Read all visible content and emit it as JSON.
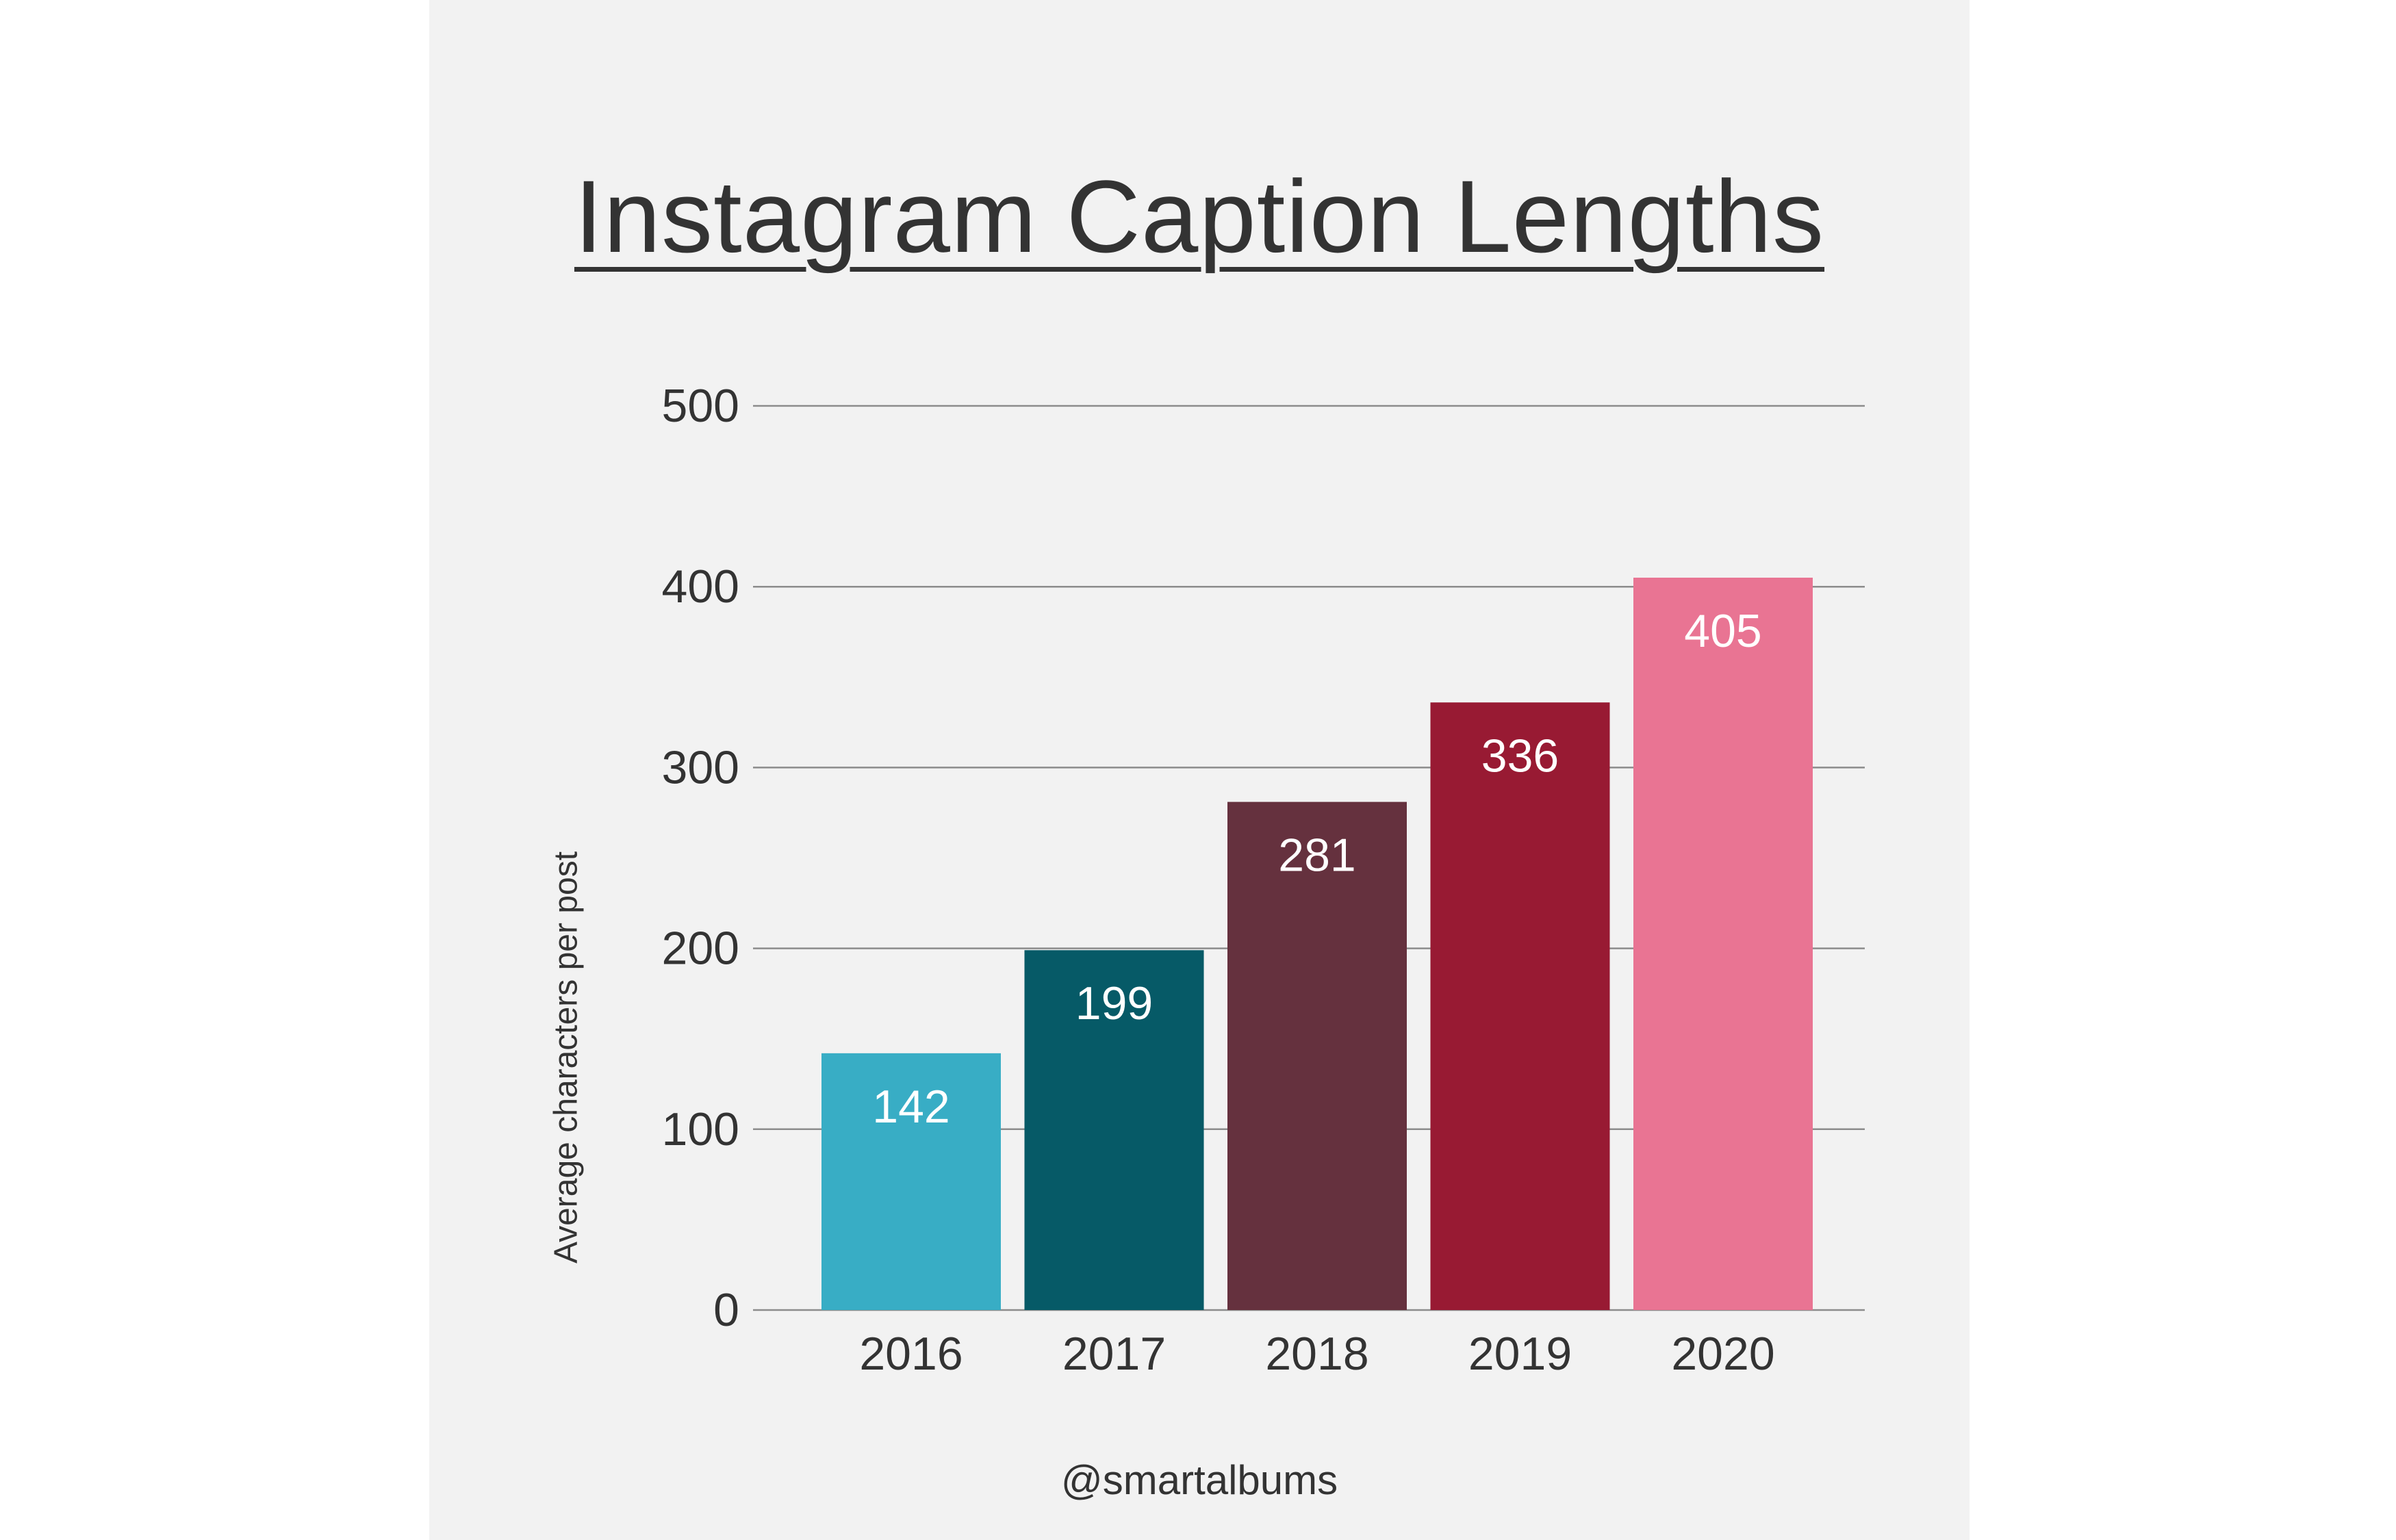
{
  "chart_data": {
    "type": "bar",
    "title": "Instagram Caption Lengths",
    "xlabel": "",
    "ylabel": "Average characters per post",
    "categories": [
      "2016",
      "2017",
      "2018",
      "2019",
      "2020"
    ],
    "values": [
      142,
      199,
      281,
      336,
      405
    ],
    "value_labels": [
      "142",
      "199",
      "281",
      "336",
      "405"
    ],
    "colors": [
      "#38adc5",
      "#065a67",
      "#65313e",
      "#981a33",
      "#e97493"
    ],
    "ylim": [
      0,
      500
    ],
    "yticks": [
      0,
      100,
      200,
      300,
      400,
      500
    ],
    "ytick_labels": [
      "0",
      "100",
      "200",
      "300",
      "400",
      "500"
    ],
    "grid": true,
    "legend": "none"
  },
  "footer": {
    "handle": "@smartalbums"
  }
}
